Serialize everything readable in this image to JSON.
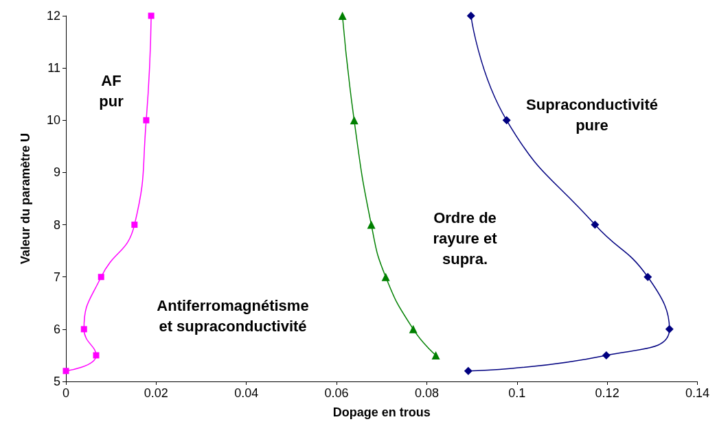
{
  "chart_data": {
    "type": "line",
    "xlabel": "Dopage en trous",
    "ylabel": "Valeur du paramètre U",
    "xlim": [
      0,
      0.14
    ],
    "xticks": [
      0,
      0.02,
      0.04,
      0.06,
      0.08,
      0.1,
      0.12,
      0.14
    ],
    "ylim": [
      5,
      12
    ],
    "yticks": [
      5,
      6,
      7,
      8,
      9,
      10,
      11,
      12
    ],
    "grid": false,
    "line_style": "solid",
    "series": [
      {
        "color": "#ff00ff",
        "marker": "square",
        "x": [
          0,
          0.0067,
          0.004,
          0.0078,
          0.0152,
          0.0178,
          0.0189
        ],
        "values": [
          5.2,
          5.5,
          6,
          7,
          8,
          10,
          12
        ]
      },
      {
        "color": "#008000",
        "marker": "triangle",
        "x": [
          0.082,
          0.077,
          0.0709,
          0.0677,
          0.0639,
          0.0613
        ],
        "values": [
          5.5,
          6,
          7,
          8,
          10,
          12
        ]
      },
      {
        "color": "#000080",
        "marker": "diamond",
        "x": [
          0.0892,
          0.1198,
          0.1338,
          0.129,
          0.1173,
          0.0977,
          0.0898
        ],
        "values": [
          5.2,
          5.5,
          6,
          7,
          8,
          10,
          12
        ]
      }
    ],
    "annotations": [
      "AF\npur",
      "Antiferromagnétisme\net supraconductivité",
      "Ordre de\nrayure et\nsupra.",
      "Supraconductivité\npure"
    ]
  }
}
